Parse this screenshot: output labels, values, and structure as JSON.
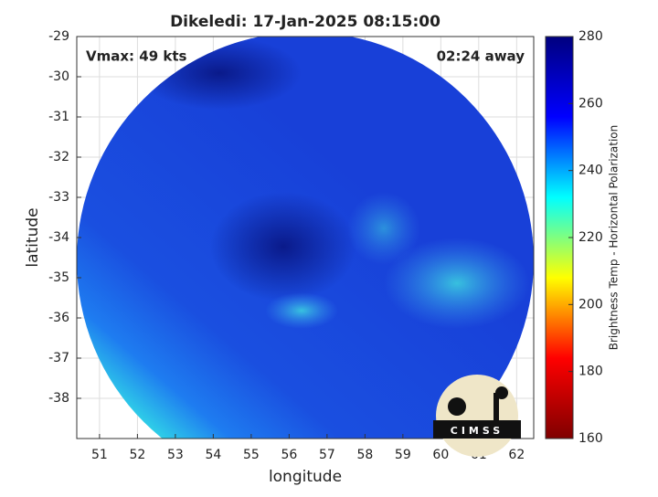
{
  "chart_data": {
    "type": "image",
    "title": "Dikeledi: 17-Jan-2025 08:15:00",
    "annotations": [
      "Vmax: 49 kts",
      "02:24 away"
    ],
    "xlabel": "longitude",
    "ylabel": "latitude",
    "xlim": [
      50.4,
      62.45
    ],
    "ylim": [
      -39,
      -29
    ],
    "xticks": [
      51,
      52,
      53,
      54,
      55,
      56,
      57,
      58,
      59,
      60,
      61,
      62
    ],
    "yticks": [
      -29,
      -30,
      -31,
      -32,
      -33,
      -34,
      -35,
      -36,
      -37,
      -38
    ],
    "grid": true,
    "colorbar": {
      "label": "Brightness Temp - Horizontal Polarization",
      "lim": [
        160,
        280
      ],
      "ticks": [
        160,
        180,
        200,
        220,
        240,
        260,
        280
      ],
      "colormap": [
        "#7f0000",
        "#ff0000",
        "#ffff00",
        "#00ffff",
        "#0000ff",
        "#00007f"
      ]
    },
    "logo": "CIMSS"
  }
}
